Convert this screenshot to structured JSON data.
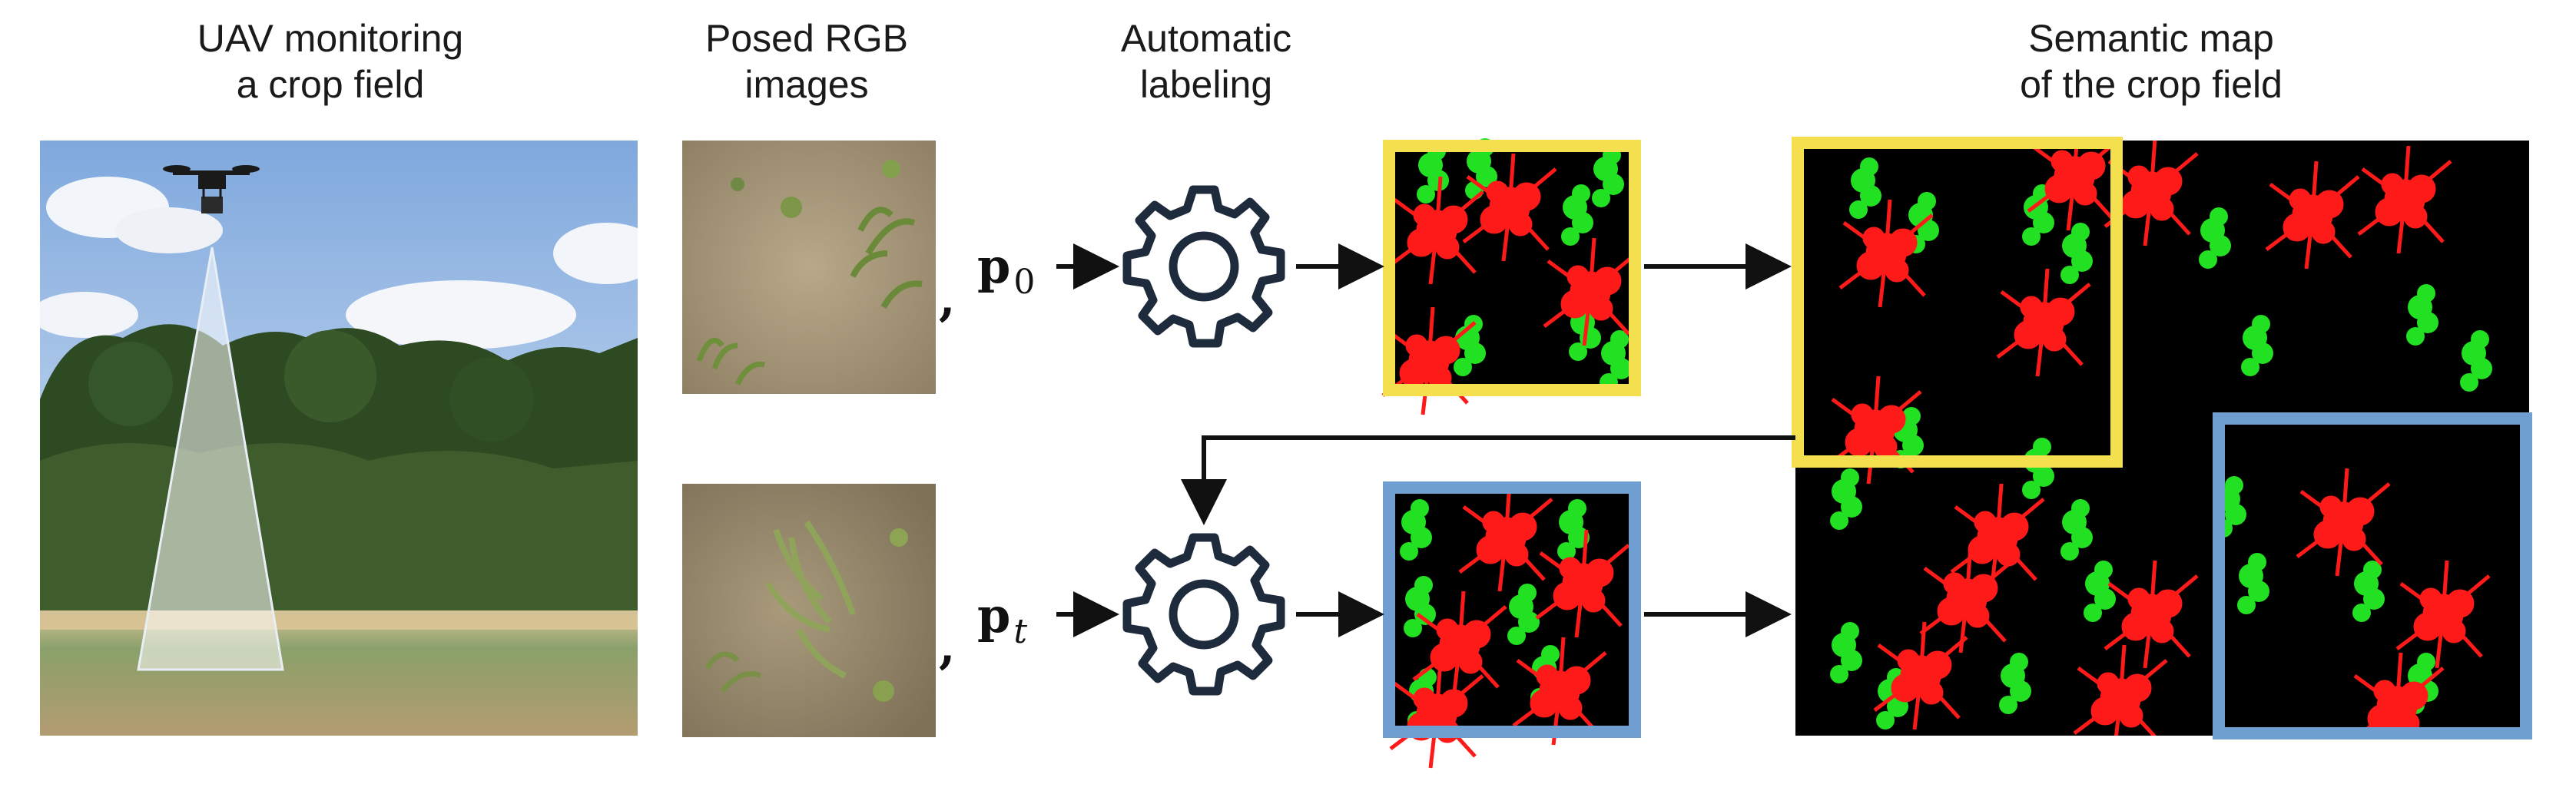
{
  "columns": {
    "uav": {
      "line1": "UAV monitoring",
      "line2": "a crop field"
    },
    "rgb": {
      "line1": "Posed RGB",
      "line2": "images"
    },
    "labeling": {
      "line1": "Automatic",
      "line2": "labeling"
    },
    "map": {
      "line1": "Semantic map",
      "line2": "of the crop field"
    }
  },
  "poses": {
    "first": {
      "symbol": "p",
      "subscript": "0"
    },
    "current": {
      "symbol": "p",
      "subscript": "t"
    }
  },
  "separator": ",",
  "colors": {
    "crop": "#22e022",
    "weed": "#ff1a1a",
    "background": "#000000",
    "first_frame": "#f4df4e",
    "current_frame": "#6f9fd0",
    "arrow": "#111111",
    "gear_stroke": "#1e2b3c"
  },
  "icons": {
    "labeling_tool": "gear-icon"
  }
}
